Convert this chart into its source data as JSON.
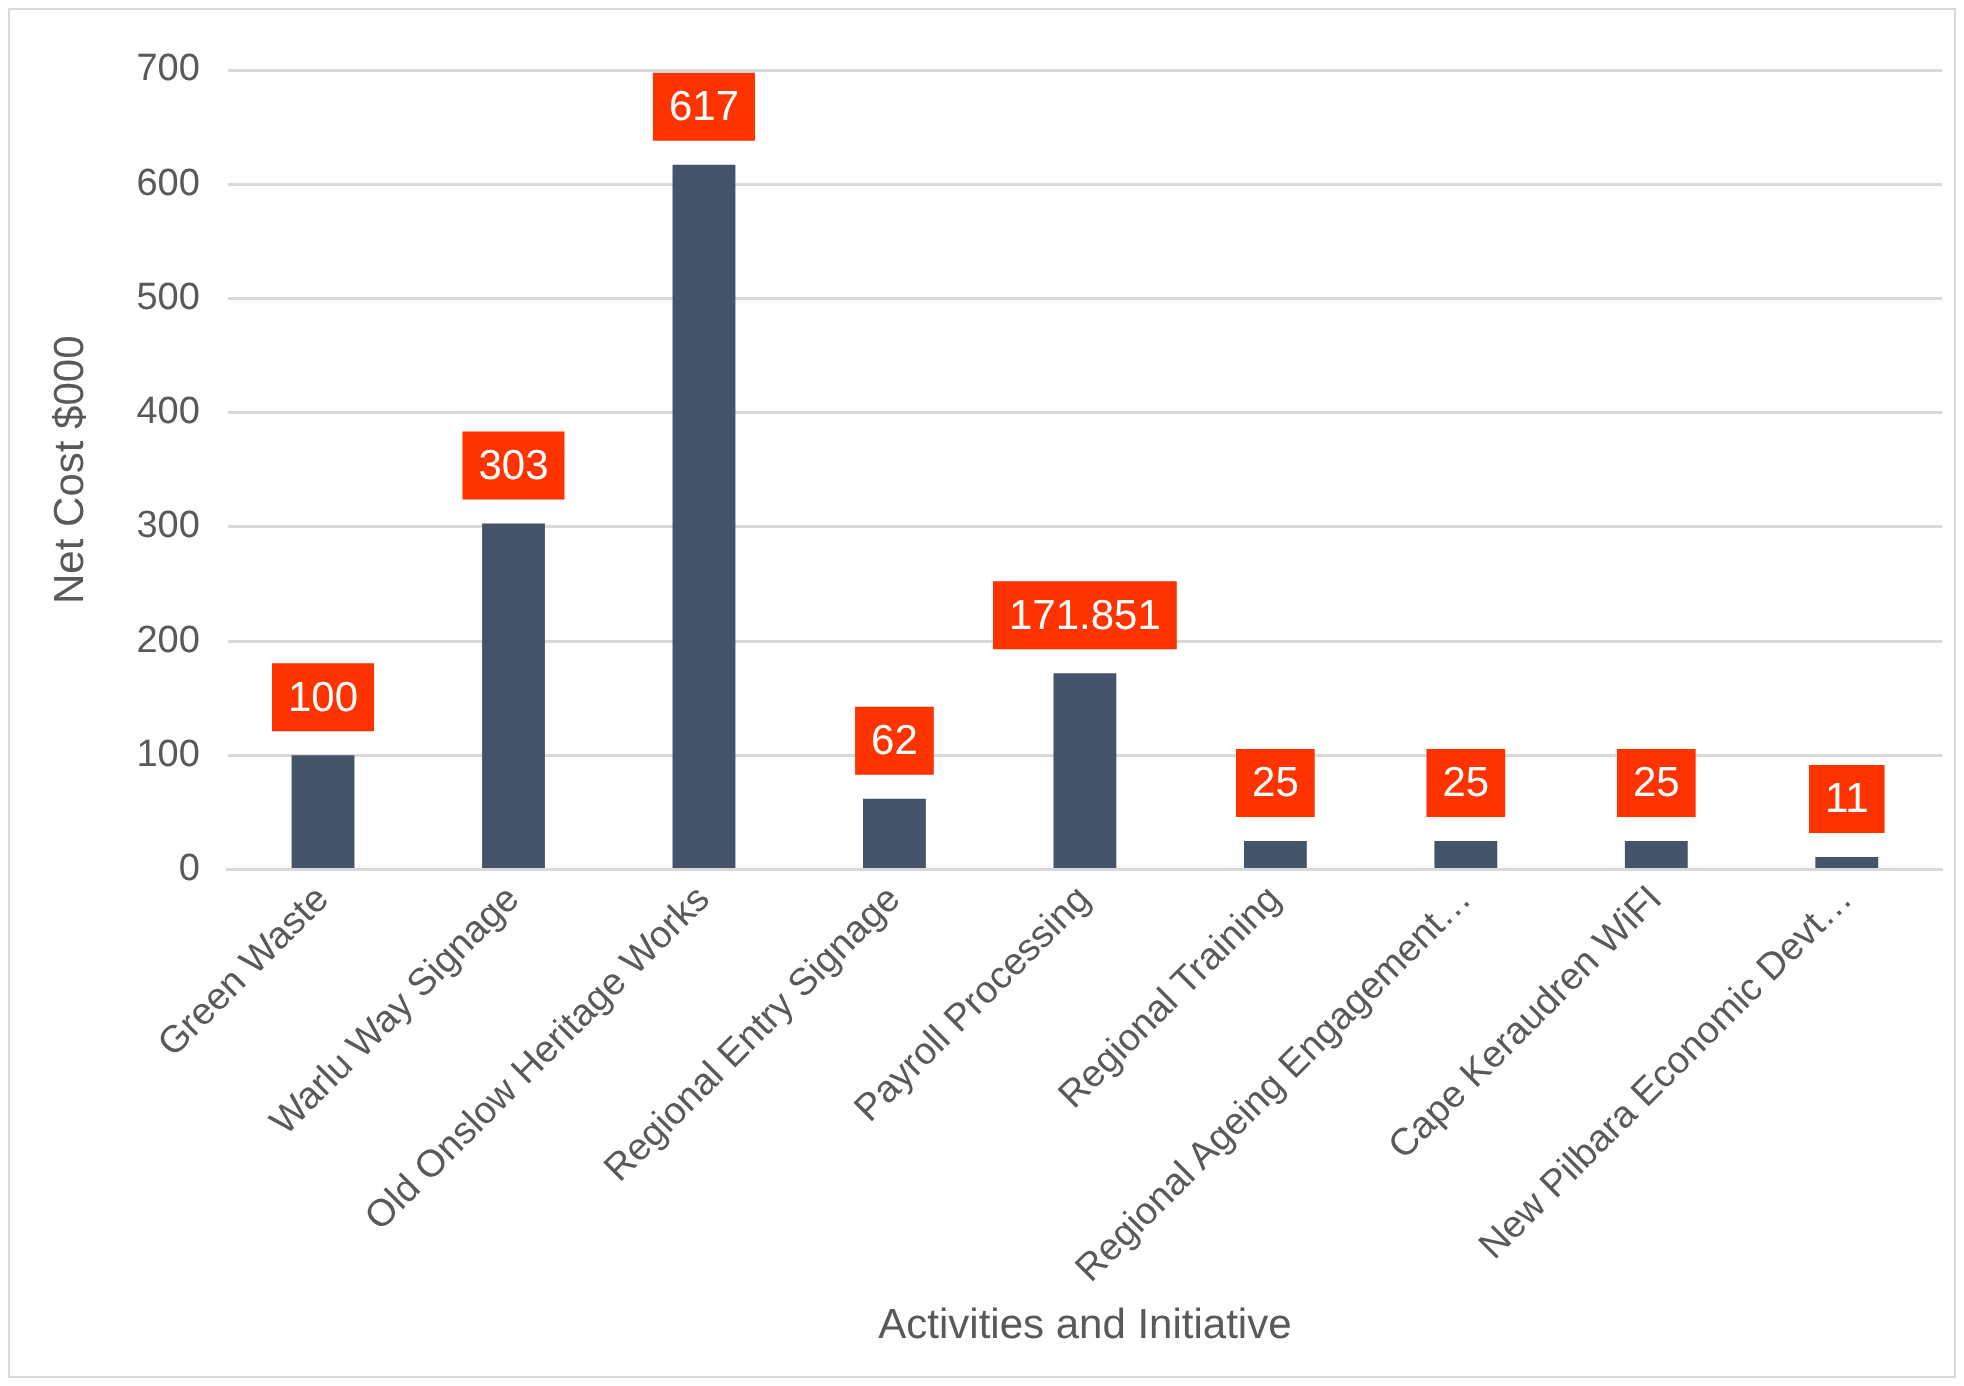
{
  "chart_data": {
    "type": "bar",
    "xlabel": "Activities and Initiative",
    "ylabel": "Net Cost $000",
    "categories": [
      "Green Waste",
      "Warlu Way Signage",
      "Old Onslow Heritage Works",
      "Regional Entry Signage",
      "Payroll Processing",
      "Regional Training",
      "Regional Ageing Engagement…",
      "Cape Keraudren WiFI",
      "New Pilbara Economic Devt…"
    ],
    "values": [
      100,
      303,
      617,
      62,
      171.851,
      25,
      25,
      25,
      11
    ],
    "color": "#44546a",
    "ylim": [
      0,
      700
    ],
    "yticks": [
      0,
      100,
      200,
      300,
      400,
      500,
      600,
      700
    ],
    "grid": "y",
    "legend": false,
    "data_labels": true
  }
}
